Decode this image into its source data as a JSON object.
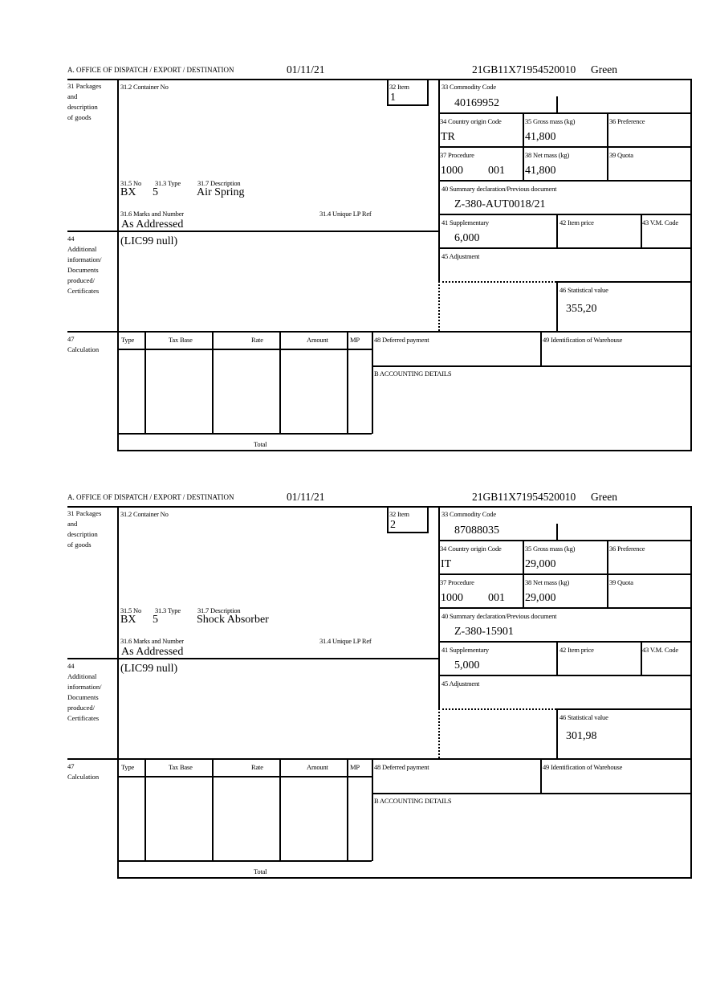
{
  "labels": {
    "office": "A.  OFFICE OF DISPATCH / EXPORT / DESTINATION",
    "box31": [
      "31 Packages",
      "and",
      "description",
      "of goods"
    ],
    "container_no": "31.2 Container No",
    "item": "32 Item",
    "commodity_code": "33 Commodity Code",
    "country_origin": "34 Country origin Code",
    "gross_mass": "35 Gross mass (kg)",
    "preference": "36 Preference",
    "procedure": "37 Procedure",
    "net_mass": "38 Net mass (kg)",
    "quota": "39 Quota",
    "summary_declaration": "40 Summary declaration/Previous document",
    "supplementary": "41 Supplementary",
    "item_price": "42 Item price",
    "vm_code": "43 V.M. Code",
    "adjustment": "45 Adjustment",
    "statistical_value": "46 Statistical value",
    "no": "31.5 No",
    "type": "31.3 Type",
    "description": "31.7 Description",
    "marks": "31.6 Marks and Number",
    "unique_lp_ref": "31.4 Unique LP Ref",
    "box44": [
      "44",
      "Additional",
      "information/",
      "Documents",
      "produced/",
      "Certificates"
    ],
    "box47": [
      "47",
      "Calculation"
    ],
    "calc_headers": [
      "Type",
      "Tax Base",
      "Rate",
      "Amount",
      "MP"
    ],
    "total": "Total",
    "deferred_payment": "48 Deferred payment",
    "warehouse": "49 Identification of Warehouse",
    "accounting": "B ACCOUNTING DETAILS"
  },
  "forms": [
    {
      "date": "01/11/21",
      "reference": "21GB11X71954520010",
      "route": "Green",
      "item": "1",
      "commodity_code": "40169952",
      "country_origin": "TR",
      "gross_mass": "41,800",
      "procedure": "1000",
      "procedure_extra": "001",
      "net_mass": "41,800",
      "summary_declaration": "Z-380-AUT0018/21",
      "supplementary": "6,000",
      "statistical_value": "355,20",
      "package_kind": "BX",
      "package_count": "5",
      "description": "Air Spring",
      "marks": "As Addressed",
      "additional_info": "(LIC99 null)"
    },
    {
      "date": "01/11/21",
      "reference": "21GB11X71954520010",
      "route": "Green",
      "item": "2",
      "commodity_code": "87088035",
      "country_origin": "IT",
      "gross_mass": "29,000",
      "procedure": "1000",
      "procedure_extra": "001",
      "net_mass": "29,000",
      "summary_declaration": "Z-380-15901",
      "supplementary": "5,000",
      "statistical_value": "301,98",
      "package_kind": "BX",
      "package_count": "5",
      "description": "Shock Absorber",
      "marks": "As Addressed",
      "additional_info": "(LIC99 null)"
    }
  ]
}
